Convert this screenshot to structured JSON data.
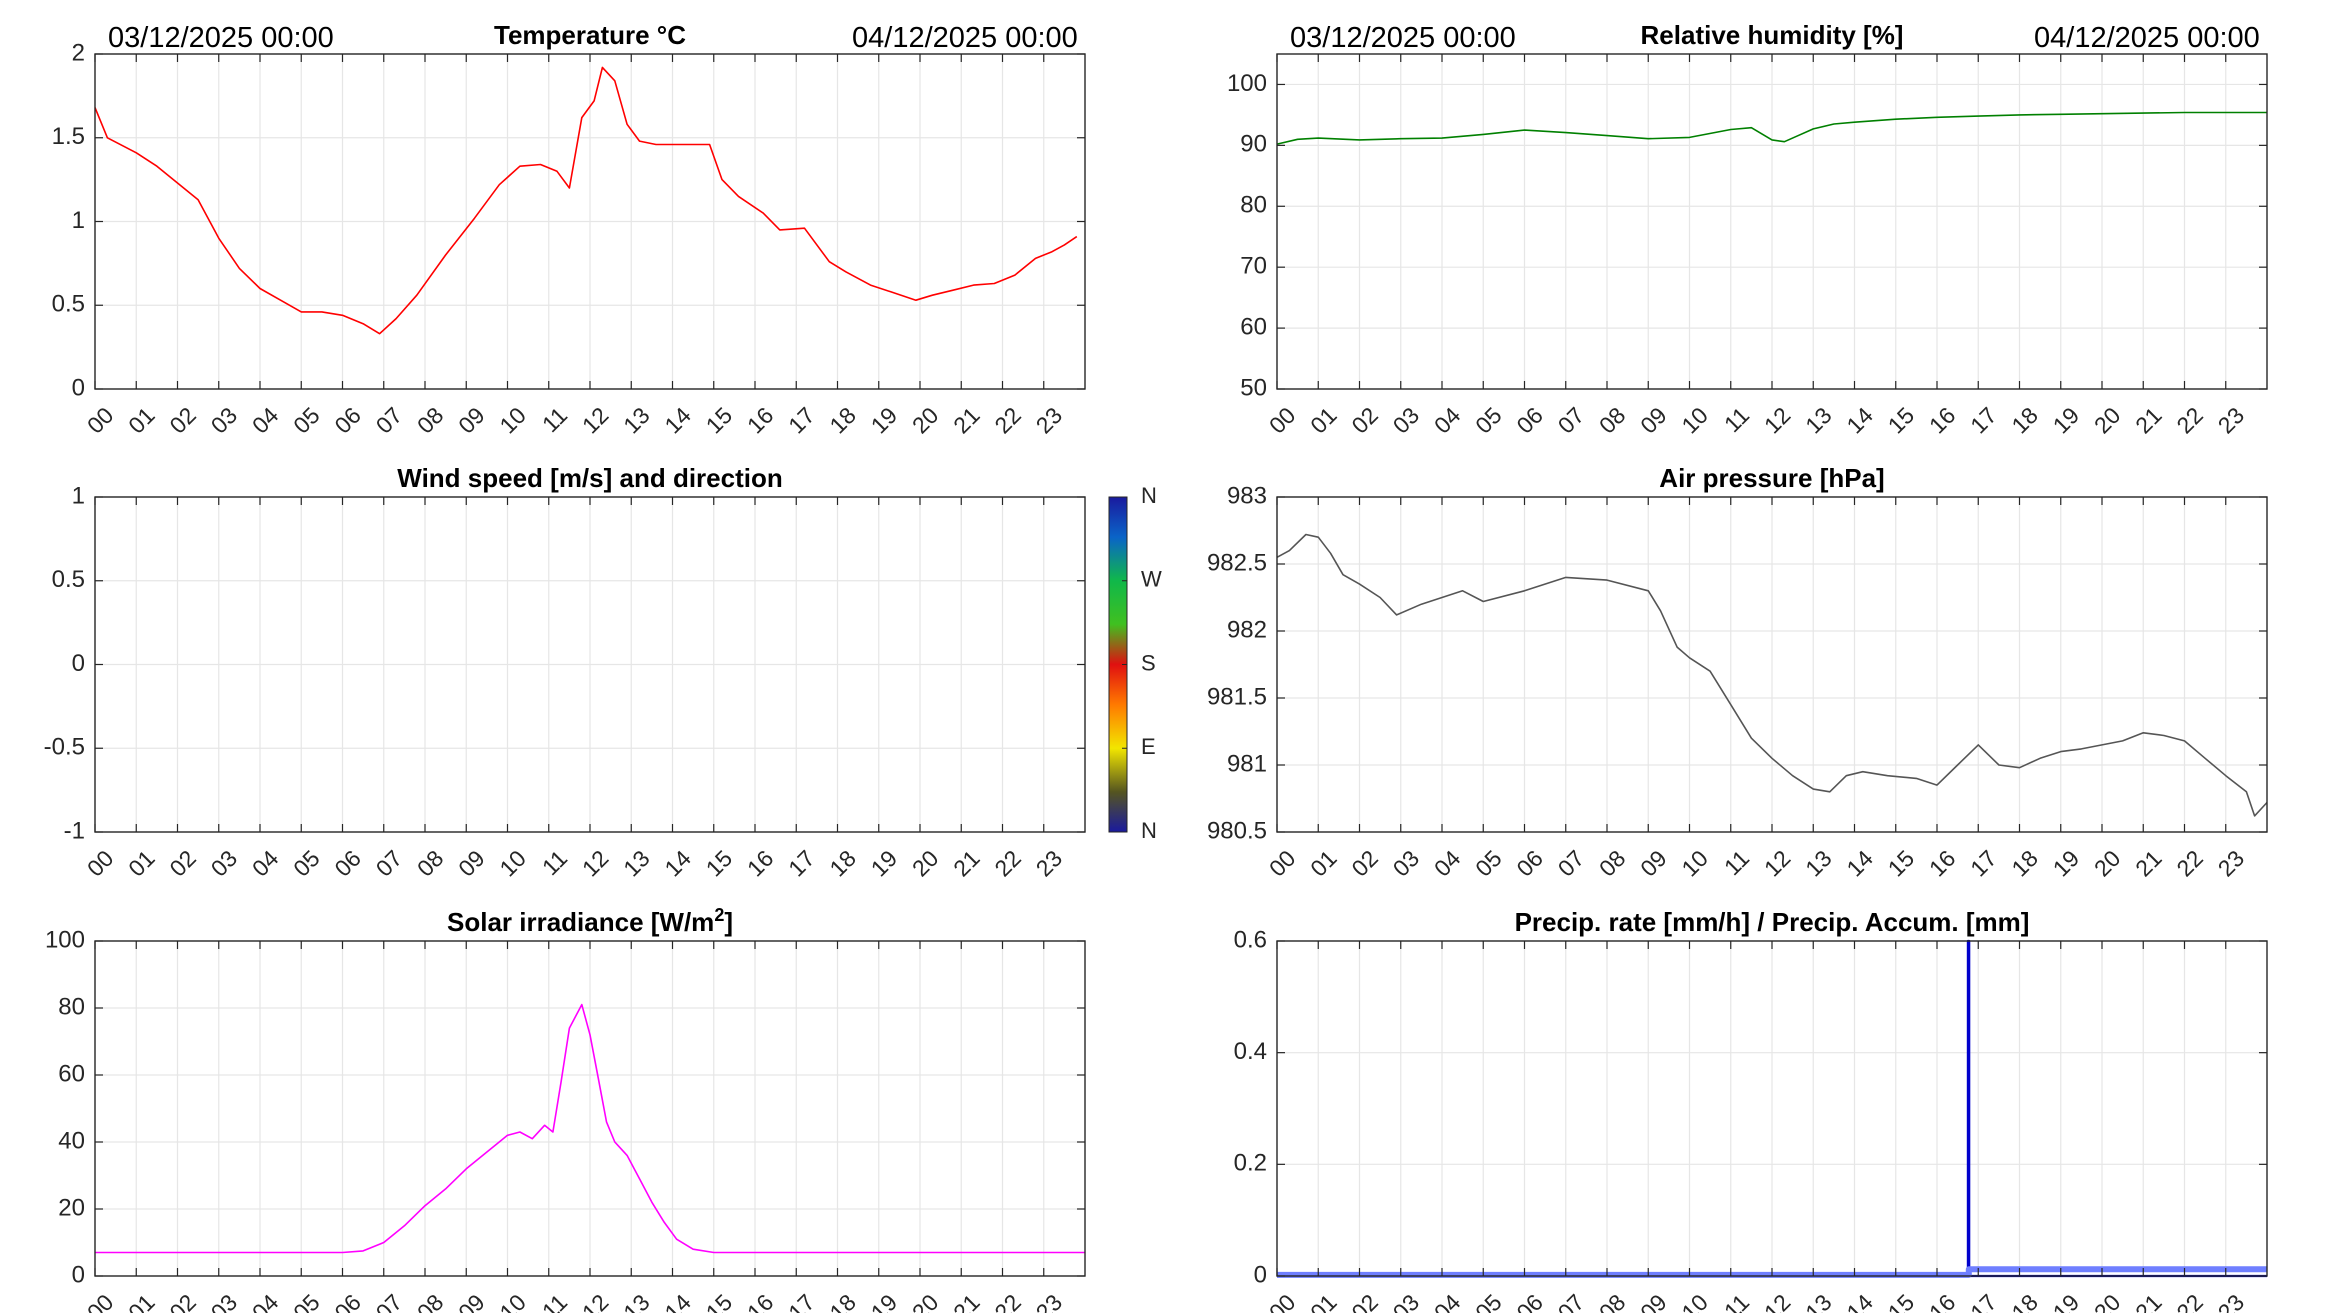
{
  "header": {
    "start_date": "03/12/2025 00:00",
    "end_date": "04/12/2025 00:00"
  },
  "colors": {
    "temperature": "#ff0000",
    "humidity": "#008000",
    "pressure": "#555555",
    "solar": "#ff00ff",
    "precip_rate": "#0000cc",
    "precip_accum": "#6f7fff"
  },
  "x_tick_labels": [
    "00",
    "01",
    "02",
    "03",
    "04",
    "05",
    "06",
    "07",
    "08",
    "09",
    "10",
    "11",
    "12",
    "13",
    "14",
    "15",
    "16",
    "17",
    "18",
    "19",
    "20",
    "21",
    "22",
    "23"
  ],
  "chart_data": [
    {
      "id": "temperature",
      "type": "line",
      "title": "Temperature °C",
      "xlim": [
        0,
        24
      ],
      "ylim": [
        0,
        2
      ],
      "yticks": [
        0,
        0.5,
        1,
        1.5,
        2
      ],
      "ytick_labels": [
        "0",
        "0.5",
        "1",
        "1.5",
        "2"
      ],
      "grid": true,
      "series": [
        {
          "color": "#ff0000",
          "x": [
            0,
            0.3,
            1,
            1.5,
            2,
            2.5,
            3,
            3.5,
            4,
            4.5,
            5,
            5.5,
            6,
            6.5,
            6.9,
            7.3,
            7.8,
            8.5,
            9.2,
            9.8,
            10.3,
            10.8,
            11.2,
            11.5,
            11.8,
            12.1,
            12.3,
            12.6,
            12.9,
            13.2,
            13.6,
            14,
            14.5,
            14.9,
            15.2,
            15.6,
            16.2,
            16.6,
            17.2,
            17.8,
            18.2,
            18.8,
            19.3,
            19.9,
            20.3,
            20.8,
            21.3,
            21.8,
            22.3,
            22.8,
            23.2,
            23.5,
            23.8
          ],
          "y": [
            1.68,
            1.5,
            1.41,
            1.33,
            1.23,
            1.13,
            0.9,
            0.72,
            0.6,
            0.53,
            0.46,
            0.46,
            0.44,
            0.39,
            0.33,
            0.42,
            0.56,
            0.8,
            1.02,
            1.22,
            1.33,
            1.34,
            1.3,
            1.2,
            1.62,
            1.72,
            1.92,
            1.84,
            1.58,
            1.48,
            1.46,
            1.46,
            1.46,
            1.46,
            1.25,
            1.15,
            1.05,
            0.95,
            0.96,
            0.76,
            0.7,
            0.62,
            0.58,
            0.53,
            0.56,
            0.59,
            0.62,
            0.63,
            0.68,
            0.78,
            0.82,
            0.86,
            0.91
          ]
        }
      ]
    },
    {
      "id": "humidity",
      "type": "line",
      "title": "Relative humidity [%]",
      "xlim": [
        0,
        24
      ],
      "ylim": [
        50,
        105
      ],
      "yticks": [
        50,
        60,
        70,
        80,
        90,
        100
      ],
      "ytick_labels": [
        "50",
        "60",
        "70",
        "80",
        "90",
        "100"
      ],
      "grid": true,
      "series": [
        {
          "color": "#008000",
          "x": [
            0,
            0.5,
            1,
            2,
            3,
            4,
            5,
            6,
            7,
            8,
            9,
            10,
            11,
            11.5,
            12,
            12.3,
            12.6,
            13,
            13.5,
            14,
            15,
            16,
            17,
            18,
            19,
            20,
            21,
            22,
            23,
            24
          ],
          "y": [
            90.2,
            91,
            91.2,
            90.9,
            91.1,
            91.2,
            91.8,
            92.5,
            92.1,
            91.6,
            91.1,
            91.3,
            92.6,
            92.9,
            90.9,
            90.6,
            91.5,
            92.7,
            93.5,
            93.8,
            94.3,
            94.6,
            94.8,
            95.0,
            95.1,
            95.2,
            95.3,
            95.4,
            95.4,
            95.4
          ]
        }
      ]
    },
    {
      "id": "wind",
      "type": "scatter",
      "title": "Wind speed [m/s] and direction",
      "xlim": [
        0,
        24
      ],
      "ylim": [
        -1,
        1
      ],
      "yticks": [
        -1,
        -0.5,
        0,
        0.5,
        1
      ],
      "ytick_labels": [
        "-1",
        "-0.5",
        "0",
        "0.5",
        "1"
      ],
      "grid": true,
      "series": [],
      "colorbar": {
        "labels": [
          "N",
          "W",
          "S",
          "E",
          "N"
        ]
      }
    },
    {
      "id": "pressure",
      "type": "line",
      "title": "Air pressure [hPa]",
      "xlim": [
        0,
        24
      ],
      "ylim": [
        980.5,
        983
      ],
      "yticks": [
        980.5,
        981,
        981.5,
        982,
        982.5,
        983
      ],
      "ytick_labels": [
        "980.5",
        "981",
        "981.5",
        "982",
        "982.5",
        "983"
      ],
      "grid": true,
      "series": [
        {
          "color": "#555555",
          "x": [
            0,
            0.3,
            0.7,
            1,
            1.3,
            1.6,
            2,
            2.5,
            2.9,
            3.5,
            4,
            4.5,
            5,
            6,
            7,
            8,
            9,
            9.3,
            9.7,
            10,
            10.5,
            11,
            11.5,
            12,
            12.5,
            13,
            13.4,
            13.8,
            14.2,
            14.8,
            15.5,
            16,
            16.5,
            17,
            17.5,
            18,
            18.5,
            19,
            19.5,
            20,
            20.5,
            21,
            21.5,
            22,
            22.5,
            23,
            23.5,
            23.7,
            24
          ],
          "y": [
            982.55,
            982.6,
            982.72,
            982.7,
            982.58,
            982.42,
            982.35,
            982.25,
            982.12,
            982.2,
            982.25,
            982.3,
            982.22,
            982.3,
            982.4,
            982.38,
            982.3,
            982.15,
            981.88,
            981.8,
            981.7,
            981.45,
            981.2,
            981.05,
            980.92,
            980.82,
            980.8,
            980.92,
            980.95,
            980.92,
            980.9,
            980.85,
            981.0,
            981.15,
            981.0,
            980.98,
            981.05,
            981.1,
            981.12,
            981.15,
            981.18,
            981.24,
            981.22,
            981.18,
            981.05,
            980.92,
            980.8,
            980.62,
            980.72
          ]
        }
      ]
    },
    {
      "id": "solar",
      "type": "line",
      "title": "Solar irradiance [W/m²]",
      "xlim": [
        0,
        24
      ],
      "ylim": [
        0,
        100
      ],
      "yticks": [
        0,
        20,
        40,
        60,
        80,
        100
      ],
      "ytick_labels": [
        "0",
        "20",
        "40",
        "60",
        "80",
        "100"
      ],
      "grid": true,
      "series": [
        {
          "color": "#ff00ff",
          "x": [
            0,
            1,
            2,
            3,
            4,
            5,
            6,
            6.5,
            7,
            7.5,
            8,
            8.5,
            9,
            9.5,
            10,
            10.3,
            10.6,
            10.9,
            11.1,
            11.3,
            11.5,
            11.8,
            12.0,
            12.2,
            12.4,
            12.6,
            12.9,
            13.2,
            13.5,
            13.8,
            14.1,
            14.5,
            15,
            16,
            17,
            18,
            19,
            20,
            21,
            22,
            23,
            24
          ],
          "y": [
            7,
            7,
            7,
            7,
            7,
            7,
            7,
            7.5,
            10,
            15,
            21,
            26,
            32,
            37,
            42,
            43,
            41,
            45,
            43,
            58,
            74,
            81,
            72,
            59,
            46,
            40,
            36,
            29,
            22,
            16,
            11,
            8,
            7,
            7,
            7,
            7,
            7,
            7,
            7,
            7,
            7,
            7
          ]
        }
      ]
    },
    {
      "id": "precip",
      "type": "line",
      "title": "Precip. rate [mm/h] / Precip. Accum. [mm]",
      "xlim": [
        0,
        24
      ],
      "ylim": [
        0,
        0.6
      ],
      "yticks": [
        0,
        0.2,
        0.4,
        0.6
      ],
      "ytick_labels": [
        "0",
        "0.2",
        "0.4",
        "0.6"
      ],
      "grid": true,
      "series": [
        {
          "color": "#0000cc",
          "x": [
            0,
            16.75,
            16.75,
            16.78,
            16.78,
            24
          ],
          "y": [
            0,
            0,
            0.6,
            0.6,
            0,
            0
          ]
        },
        {
          "color": "#6f7fff",
          "x": [
            0,
            16.77,
            16.77,
            24
          ],
          "y": [
            0.002,
            0.002,
            0.012,
            0.012
          ]
        }
      ]
    }
  ]
}
